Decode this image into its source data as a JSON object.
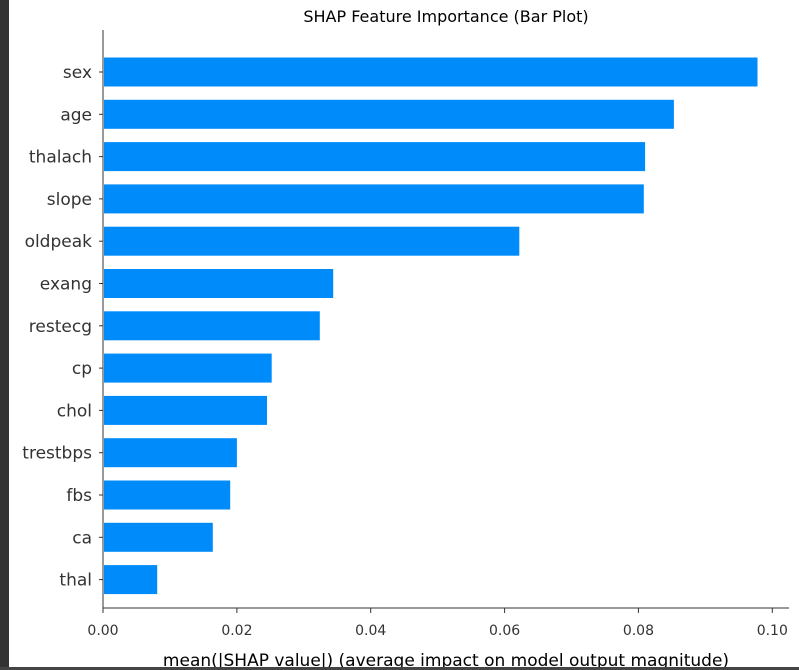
{
  "chart_data": {
    "type": "bar",
    "orientation": "horizontal",
    "title": "SHAP Feature Importance (Bar Plot)",
    "xlabel": "mean(|SHAP value|) (average impact on model output magnitude)",
    "ylabel": "",
    "categories": [
      "sex",
      "age",
      "thalach",
      "slope",
      "oldpeak",
      "exang",
      "restecg",
      "cp",
      "chol",
      "trestbps",
      "fbs",
      "ca",
      "thal"
    ],
    "values": [
      0.0978,
      0.0853,
      0.081,
      0.0808,
      0.0622,
      0.0344,
      0.0324,
      0.0252,
      0.0245,
      0.02,
      0.019,
      0.0164,
      0.0081
    ],
    "xlim": [
      0.0,
      0.1025
    ],
    "xticks": [
      0.0,
      0.02,
      0.04,
      0.06,
      0.08,
      0.1
    ],
    "xtick_labels": [
      "0.00",
      "0.02",
      "0.04",
      "0.06",
      "0.08",
      "0.10"
    ],
    "grid": false,
    "bar_color": "#008bfb"
  },
  "colors": {
    "axis": "#333333",
    "window_frame": "#333333"
  }
}
